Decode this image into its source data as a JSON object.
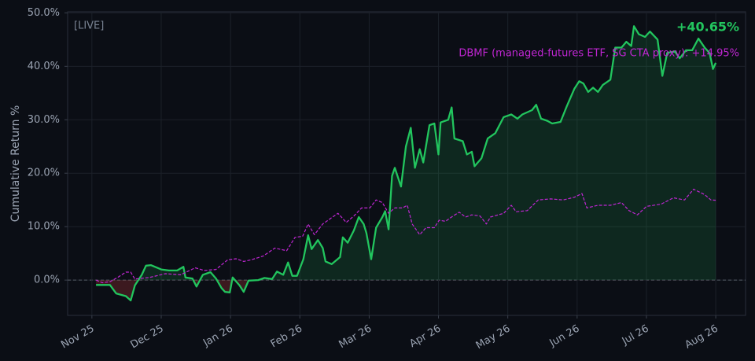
{
  "chart_data": {
    "type": "line",
    "ylabel": "Cumulative Return %",
    "annotations": [
      "[LIVE]",
      "+40.65%",
      "DBMF (managed-futures ETF, SG CTA proxy): +14.95%"
    ],
    "xlim": [
      -0.35,
      9.43
    ],
    "ylim": [
      -6.6,
      50.2
    ],
    "xticks": [
      {
        "value": 0,
        "label": "Nov 25"
      },
      {
        "value": 1,
        "label": "Dec 25"
      },
      {
        "value": 2,
        "label": "Jan 26"
      },
      {
        "value": 3,
        "label": "Feb 26"
      },
      {
        "value": 4,
        "label": "Mar 26"
      },
      {
        "value": 5,
        "label": "Apr 26"
      },
      {
        "value": 6,
        "label": "May 26"
      },
      {
        "value": 7,
        "label": "Jun 26"
      },
      {
        "value": 8,
        "label": "Jul 26"
      },
      {
        "value": 9,
        "label": "Aug 26"
      }
    ],
    "yticks": [
      {
        "value": 0,
        "label": "0.0%"
      },
      {
        "value": 10,
        "label": "10.0%"
      },
      {
        "value": 20,
        "label": "20.0%"
      },
      {
        "value": 30,
        "label": "30.0%"
      },
      {
        "value": 40,
        "label": "40.0%"
      },
      {
        "value": 50,
        "label": "50.0%"
      }
    ],
    "grid": true,
    "series": [
      {
        "color": "#22c55e",
        "style": "solid",
        "fill": true,
        "x": [
          0.06,
          0.26,
          0.35,
          0.49,
          0.56,
          0.62,
          0.72,
          0.78,
          0.85,
          1.0,
          1.11,
          1.23,
          1.32,
          1.35,
          1.45,
          1.51,
          1.6,
          1.71,
          1.79,
          1.87,
          1.92,
          1.99,
          2.03,
          2.13,
          2.19,
          2.26,
          2.4,
          2.49,
          2.6,
          2.67,
          2.76,
          2.83,
          2.89,
          2.96,
          3.05,
          3.12,
          3.17,
          3.26,
          3.33,
          3.37,
          3.46,
          3.58,
          3.62,
          3.69,
          3.78,
          3.85,
          3.92,
          3.96,
          4.03,
          4.1,
          4.19,
          4.23,
          4.28,
          4.33,
          4.37,
          4.46,
          4.53,
          4.6,
          4.66,
          4.73,
          4.78,
          4.87,
          4.94,
          5.0,
          5.03,
          5.14,
          5.19,
          5.23,
          5.35,
          5.41,
          5.48,
          5.52,
          5.62,
          5.71,
          5.82,
          5.94,
          6.05,
          6.14,
          6.21,
          6.35,
          6.41,
          6.48,
          6.57,
          6.64,
          6.76,
          6.85,
          6.96,
          7.03,
          7.09,
          7.16,
          7.23,
          7.3,
          7.37,
          7.48,
          7.55,
          7.64,
          7.71,
          7.78,
          7.82,
          7.89,
          7.98,
          8.05,
          8.16,
          8.23,
          8.3,
          8.41,
          8.48,
          8.57,
          8.66,
          8.75,
          8.84,
          8.91,
          8.96,
          9.0
        ],
        "values": [
          -0.9,
          -0.9,
          -2.5,
          -3.0,
          -3.8,
          -1.0,
          1.0,
          2.7,
          2.8,
          2.0,
          1.8,
          1.8,
          2.5,
          0.5,
          0.3,
          -1.2,
          1.0,
          1.5,
          0.3,
          -1.5,
          -2.2,
          -2.3,
          0.5,
          -1.0,
          -2.2,
          -0.1,
          0.0,
          0.4,
          0.2,
          1.6,
          1.0,
          3.3,
          0.8,
          0.8,
          3.9,
          8.4,
          5.8,
          7.5,
          6.0,
          3.5,
          3.0,
          4.3,
          8.0,
          7.0,
          9.3,
          11.8,
          10.5,
          8.8,
          3.9,
          9.8,
          11.8,
          12.9,
          9.5,
          19.5,
          21.0,
          17.5,
          25.0,
          28.5,
          21.0,
          24.5,
          22.0,
          29.0,
          29.3,
          23.5,
          29.5,
          30.0,
          32.3,
          26.5,
          26.0,
          23.5,
          24.0,
          21.3,
          22.8,
          26.5,
          27.5,
          30.5,
          31.0,
          30.2,
          31.0,
          31.8,
          32.8,
          30.2,
          29.8,
          29.3,
          29.6,
          32.5,
          35.8,
          37.2,
          36.8,
          35.2,
          36.0,
          35.2,
          36.5,
          37.5,
          43.5,
          43.5,
          44.6,
          43.8,
          47.5,
          46.0,
          45.5,
          46.5,
          45.0,
          38.2,
          42.5,
          42.8,
          41.5,
          43.0,
          43.0,
          45.2,
          43.5,
          42.5,
          39.5,
          40.65
        ]
      },
      {
        "color": "#c026d3",
        "style": "dashed",
        "fill": false,
        "x": [
          0.06,
          0.15,
          0.26,
          0.37,
          0.49,
          0.56,
          0.62,
          0.83,
          1.06,
          1.28,
          1.49,
          1.62,
          1.79,
          1.96,
          2.08,
          2.19,
          2.3,
          2.47,
          2.64,
          2.81,
          2.93,
          3.04,
          3.12,
          3.21,
          3.33,
          3.44,
          3.55,
          3.67,
          3.78,
          3.89,
          4.01,
          4.1,
          4.19,
          4.28,
          4.37,
          4.48,
          4.55,
          4.62,
          4.73,
          4.82,
          4.94,
          5.01,
          5.1,
          5.21,
          5.3,
          5.39,
          5.48,
          5.6,
          5.69,
          5.75,
          5.94,
          6.05,
          6.12,
          6.28,
          6.44,
          6.62,
          6.8,
          6.96,
          7.07,
          7.14,
          7.3,
          7.48,
          7.64,
          7.75,
          7.87,
          8.0,
          8.21,
          8.39,
          8.55,
          8.68,
          8.84,
          8.93,
          9.0
        ],
        "values": [
          0,
          -0.5,
          -0.3,
          0.5,
          1.5,
          1.5,
          0.2,
          0.5,
          1.2,
          1.0,
          2.3,
          1.8,
          2.0,
          3.8,
          4.0,
          3.5,
          3.8,
          4.5,
          6.0,
          5.5,
          8.0,
          8.2,
          10.5,
          8.5,
          10.5,
          11.5,
          12.5,
          10.8,
          12.0,
          13.5,
          13.5,
          15.0,
          14.5,
          12.5,
          13.5,
          13.5,
          14.0,
          10.5,
          8.5,
          9.8,
          9.8,
          11.2,
          11.0,
          12.0,
          12.7,
          11.8,
          12.2,
          12.0,
          10.5,
          11.8,
          12.5,
          14.0,
          12.8,
          13.0,
          15.0,
          15.2,
          15.0,
          15.5,
          16.2,
          13.5,
          14.0,
          14.0,
          14.5,
          13.0,
          12.2,
          13.8,
          14.2,
          15.4,
          15.0,
          17.0,
          16.0,
          15.0,
          14.95
        ]
      }
    ]
  }
}
